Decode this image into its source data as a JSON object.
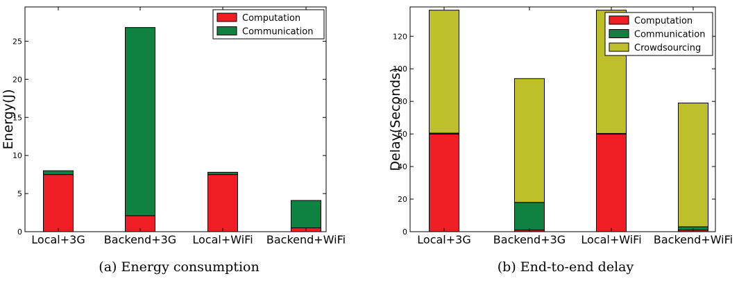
{
  "colors": {
    "computation": "#ef1d24",
    "communication": "#0f8241",
    "crowdsourcing": "#bfbf2c",
    "axis": "#000000"
  },
  "chart_data": [
    {
      "type": "bar",
      "stacked": true,
      "caption": "(a) Energy consumption",
      "title": "",
      "xlabel": "",
      "ylabel": "Energy(J)",
      "categories": [
        "Local+3G",
        "Backend+3G",
        "Local+WiFi",
        "Backend+WiFi"
      ],
      "series": [
        {
          "name": "Computation",
          "values": [
            7.5,
            2.1,
            7.5,
            0.5
          ],
          "color": "#ef1d24"
        },
        {
          "name": "Communication",
          "values": [
            0.5,
            24.7,
            0.3,
            3.6
          ],
          "color": "#0f8241"
        }
      ],
      "ylim": [
        0,
        29.5
      ],
      "yticks": [
        0,
        5,
        10,
        15,
        20,
        25
      ],
      "ytick_labels": [
        "0",
        "5",
        "10",
        "15",
        "20",
        "25"
      ],
      "grid": false,
      "legend_position": "top-right"
    },
    {
      "type": "bar",
      "stacked": true,
      "caption": "(b) End-to-end delay",
      "title": "",
      "xlabel": "",
      "ylabel": "Delay(Seconds)",
      "categories": [
        "Local+3G",
        "Backend+3G",
        "Local+WiFi",
        "Backend+WiFi"
      ],
      "series": [
        {
          "name": "Computation",
          "values": [
            60,
            1,
            60,
            1
          ],
          "color": "#ef1d24"
        },
        {
          "name": "Communication",
          "values": [
            0.5,
            17,
            0.3,
            2
          ],
          "color": "#0f8241"
        },
        {
          "name": "Crowdsourcing",
          "values": [
            75.5,
            76,
            75.7,
            76
          ],
          "color": "#bfbf2c"
        }
      ],
      "ylim": [
        0,
        138
      ],
      "yticks": [
        0,
        20,
        40,
        60,
        80,
        100,
        120
      ],
      "ytick_labels": [
        "0",
        "20",
        "40",
        "60",
        "80",
        "100",
        "120"
      ],
      "grid": false,
      "legend_position": "top-right"
    }
  ]
}
